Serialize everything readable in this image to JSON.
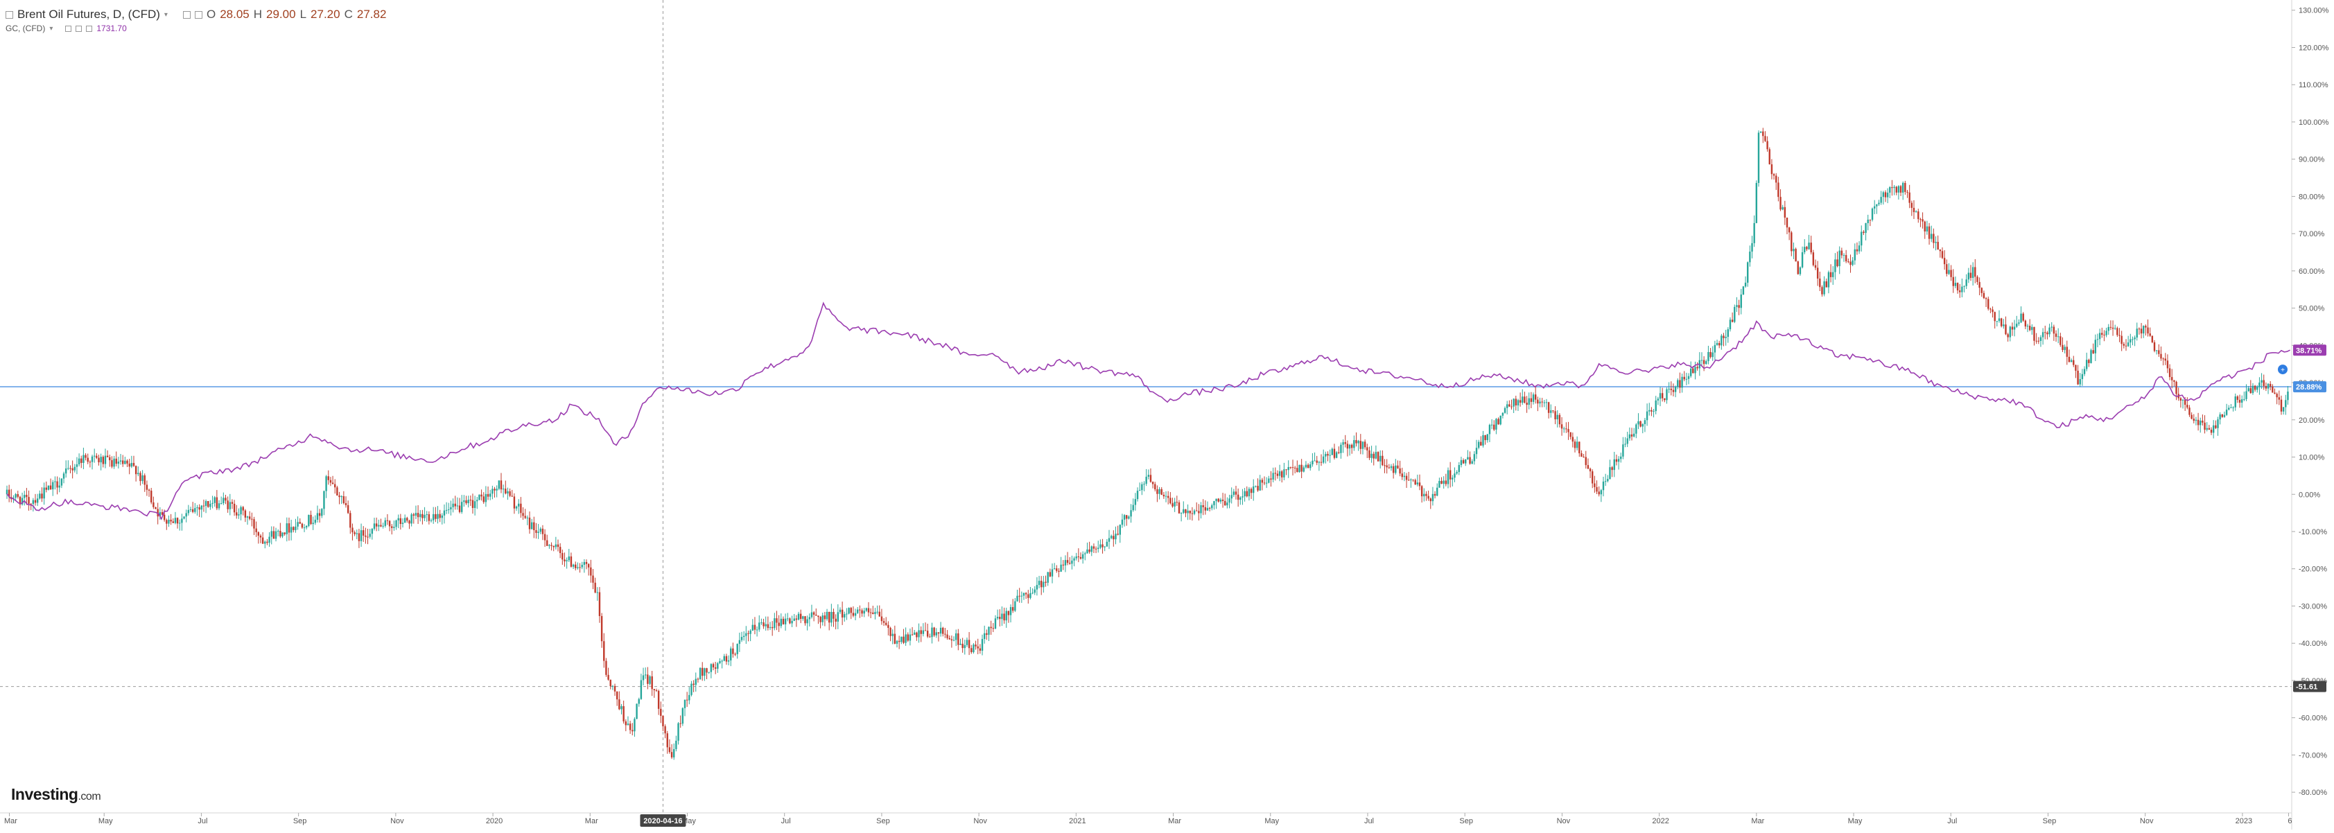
{
  "legend": {
    "main_title": "Brent Oil Futures, D, (CFD)",
    "open": "28.05",
    "high": "29.00",
    "low": "27.20",
    "close": "27.82",
    "compare_title": "GC, (CFD)",
    "compare_value": "1731.70",
    "o_label": "O",
    "h_label": "H",
    "l_label": "L",
    "c_label": "C"
  },
  "brand": {
    "name": "Investing",
    "suffix": ".com"
  },
  "colors": {
    "up": "#26a69a",
    "down": "#c0392b",
    "gold_line": "#9b3db0",
    "hline": "#4a90e2",
    "grid_cross": "#999999"
  },
  "chart_data": {
    "type": "line",
    "title": "Brent Oil Futures, D, (CFD)",
    "y_unit": "% change",
    "ylim": [
      -85,
      132
    ],
    "y_ticks": [
      "130.00%",
      "120.00%",
      "110.00%",
      "100.00%",
      "90.00%",
      "80.00%",
      "70.00%",
      "60.00%",
      "50.00%",
      "40.00%",
      "30.00%",
      "20.00%",
      "10.00%",
      "0.00%",
      "-10.00%",
      "-20.00%",
      "-30.00%",
      "-40.00%",
      "-50.00%",
      "-60.00%",
      "-70.00%",
      "-80.00%"
    ],
    "y_tick_values": [
      130,
      120,
      110,
      100,
      90,
      80,
      70,
      60,
      50,
      40,
      30,
      20,
      10,
      0,
      -10,
      -20,
      -30,
      -40,
      -50,
      -60,
      -70,
      -80
    ],
    "x_range": [
      0,
      47
    ],
    "x_ticks": [
      {
        "label": "Mar",
        "m": 0.05
      },
      {
        "label": "May",
        "m": 2.0
      },
      {
        "label": "Jul",
        "m": 4.0
      },
      {
        "label": "Sep",
        "m": 6.0
      },
      {
        "label": "Nov",
        "m": 8.0
      },
      {
        "label": "2020",
        "m": 10.0
      },
      {
        "label": "Mar",
        "m": 12.0
      },
      {
        "label": "May",
        "m": 14.0
      },
      {
        "label": "Jul",
        "m": 16.0
      },
      {
        "label": "Sep",
        "m": 18.0
      },
      {
        "label": "Nov",
        "m": 20.0
      },
      {
        "label": "2021",
        "m": 22.0
      },
      {
        "label": "Mar",
        "m": 24.0
      },
      {
        "label": "May",
        "m": 26.0
      },
      {
        "label": "Jul",
        "m": 28.0
      },
      {
        "label": "Sep",
        "m": 30.0
      },
      {
        "label": "Nov",
        "m": 32.0
      },
      {
        "label": "2022",
        "m": 34.0
      },
      {
        "label": "Mar",
        "m": 36.0
      },
      {
        "label": "May",
        "m": 38.0
      },
      {
        "label": "Jul",
        "m": 40.0
      },
      {
        "label": "Sep",
        "m": 42.0
      },
      {
        "label": "Nov",
        "m": 44.0
      },
      {
        "label": "2023",
        "m": 46.0
      },
      {
        "label": "6",
        "m": 46.95
      }
    ],
    "crosshair": {
      "date_label": "2020-04-16",
      "m": 13.5,
      "value_label": "-51.61",
      "value": -51.61
    },
    "hline": {
      "value_label": "28.88%",
      "value": 28.88
    },
    "series": [
      {
        "name": "Brent Oil Futures, D, (CFD)",
        "kind": "candlestick",
        "points": [
          [
            0,
            0
          ],
          [
            0.5,
            -2
          ],
          [
            1,
            2
          ],
          [
            1.6,
            10
          ],
          [
            2,
            9
          ],
          [
            2.7,
            7
          ],
          [
            3.2,
            -6
          ],
          [
            3.6,
            -7
          ],
          [
            4,
            -3
          ],
          [
            4.5,
            -2
          ],
          [
            5,
            -6
          ],
          [
            5.3,
            -12
          ],
          [
            6,
            -8
          ],
          [
            6.5,
            -6
          ],
          [
            6.6,
            4
          ],
          [
            7,
            -2
          ],
          [
            7.2,
            -12
          ],
          [
            7.6,
            -9
          ],
          [
            8,
            -8
          ],
          [
            8.6,
            -6
          ],
          [
            9,
            -5
          ],
          [
            9.5,
            -3
          ],
          [
            10,
            0
          ],
          [
            10.2,
            3
          ],
          [
            10.4,
            -1
          ],
          [
            10.8,
            -8
          ],
          [
            11.2,
            -13
          ],
          [
            11.6,
            -18
          ],
          [
            12,
            -20
          ],
          [
            12.2,
            -28
          ],
          [
            12.35,
            -47
          ],
          [
            12.6,
            -55
          ],
          [
            12.9,
            -65
          ],
          [
            13.1,
            -50
          ],
          [
            13.3,
            -50
          ],
          [
            13.5,
            -58
          ],
          [
            13.7,
            -72
          ],
          [
            14,
            -55
          ],
          [
            14.3,
            -48
          ],
          [
            14.7,
            -46
          ],
          [
            15,
            -42
          ],
          [
            15.5,
            -35
          ],
          [
            16,
            -34
          ],
          [
            16.5,
            -33
          ],
          [
            17,
            -33
          ],
          [
            17.5,
            -31
          ],
          [
            18,
            -33
          ],
          [
            18.3,
            -39
          ],
          [
            18.8,
            -38
          ],
          [
            19.2,
            -37
          ],
          [
            19.6,
            -39
          ],
          [
            20,
            -42
          ],
          [
            20.3,
            -36
          ],
          [
            20.8,
            -29
          ],
          [
            21.3,
            -24
          ],
          [
            21.8,
            -18
          ],
          [
            22.2,
            -16
          ],
          [
            22.5,
            -15
          ],
          [
            23,
            -8
          ],
          [
            23.5,
            5
          ],
          [
            24,
            -3
          ],
          [
            24.5,
            -5
          ],
          [
            25,
            -2
          ],
          [
            25.6,
            1
          ],
          [
            26.2,
            5
          ],
          [
            26.8,
            8
          ],
          [
            27.3,
            11
          ],
          [
            27.8,
            14
          ],
          [
            28.3,
            9
          ],
          [
            28.8,
            5
          ],
          [
            29.3,
            -1
          ],
          [
            29.7,
            5
          ],
          [
            30.2,
            10
          ],
          [
            30.6,
            18
          ],
          [
            31,
            24
          ],
          [
            31.5,
            26
          ],
          [
            32,
            20
          ],
          [
            32.5,
            10
          ],
          [
            32.8,
            0
          ],
          [
            33.2,
            10
          ],
          [
            33.6,
            18
          ],
          [
            34,
            25
          ],
          [
            34.5,
            30
          ],
          [
            35,
            36
          ],
          [
            35.4,
            43
          ],
          [
            35.8,
            55
          ],
          [
            36,
            73
          ],
          [
            36.1,
            100
          ],
          [
            36.3,
            90
          ],
          [
            36.6,
            75
          ],
          [
            36.9,
            60
          ],
          [
            37.1,
            68
          ],
          [
            37.4,
            55
          ],
          [
            37.8,
            65
          ],
          [
            38,
            62
          ],
          [
            38.2,
            70
          ],
          [
            38.5,
            78
          ],
          [
            38.8,
            83
          ],
          [
            39.1,
            82
          ],
          [
            39.3,
            75
          ],
          [
            39.6,
            70
          ],
          [
            39.9,
            62
          ],
          [
            40.2,
            55
          ],
          [
            40.5,
            60
          ],
          [
            40.8,
            50
          ],
          [
            41.2,
            43
          ],
          [
            41.5,
            48
          ],
          [
            41.8,
            42
          ],
          [
            42.1,
            45
          ],
          [
            42.4,
            38
          ],
          [
            42.7,
            30
          ],
          [
            43,
            40
          ],
          [
            43.3,
            45
          ],
          [
            43.7,
            40
          ],
          [
            44,
            45
          ],
          [
            44.2,
            40
          ],
          [
            44.5,
            34
          ],
          [
            44.8,
            25
          ],
          [
            45.1,
            20
          ],
          [
            45.4,
            17
          ],
          [
            45.6,
            22
          ],
          [
            45.9,
            25
          ],
          [
            46.2,
            28
          ],
          [
            46.5,
            30
          ],
          [
            46.7,
            28
          ],
          [
            46.9,
            22
          ],
          [
            47,
            28
          ]
        ]
      },
      {
        "name": "GC, (CFD)",
        "kind": "line",
        "points": [
          [
            0,
            0
          ],
          [
            0.6,
            -4
          ],
          [
            1.2,
            -2
          ],
          [
            1.8,
            -3
          ],
          [
            2.5,
            -4
          ],
          [
            3.2,
            -6
          ],
          [
            3.6,
            3
          ],
          [
            4.2,
            6
          ],
          [
            4.8,
            7
          ],
          [
            5.3,
            10
          ],
          [
            6,
            14
          ],
          [
            6.3,
            16
          ],
          [
            7,
            12
          ],
          [
            7.5,
            12
          ],
          [
            8.2,
            10
          ],
          [
            8.8,
            9
          ],
          [
            9.3,
            12
          ],
          [
            9.8,
            14
          ],
          [
            10.3,
            17
          ],
          [
            10.8,
            19
          ],
          [
            11.3,
            20
          ],
          [
            11.6,
            24
          ],
          [
            12.2,
            20
          ],
          [
            12.5,
            13
          ],
          [
            12.8,
            16
          ],
          [
            13.1,
            25
          ],
          [
            13.5,
            29
          ],
          [
            14,
            28
          ],
          [
            14.5,
            27
          ],
          [
            15,
            28
          ],
          [
            15.3,
            32
          ],
          [
            16,
            36
          ],
          [
            16.5,
            39
          ],
          [
            16.8,
            51
          ],
          [
            17.2,
            45
          ],
          [
            17.7,
            44
          ],
          [
            18.5,
            43
          ],
          [
            19,
            41
          ],
          [
            19.3,
            40
          ],
          [
            19.8,
            37
          ],
          [
            20.3,
            38
          ],
          [
            20.8,
            33
          ],
          [
            21.3,
            34
          ],
          [
            21.8,
            36
          ],
          [
            22.2,
            34
          ],
          [
            22.6,
            33
          ],
          [
            23.2,
            32
          ],
          [
            23.8,
            25
          ],
          [
            24.3,
            27
          ],
          [
            24.8,
            28
          ],
          [
            25.3,
            29
          ],
          [
            25.8,
            32
          ],
          [
            26.4,
            34
          ],
          [
            27,
            37
          ],
          [
            27.5,
            35
          ],
          [
            28,
            33
          ],
          [
            28.5,
            32
          ],
          [
            29,
            31
          ],
          [
            29.5,
            29
          ],
          [
            30,
            30
          ],
          [
            30.5,
            32
          ],
          [
            31,
            31
          ],
          [
            31.5,
            29
          ],
          [
            32,
            30
          ],
          [
            32.4,
            29
          ],
          [
            32.8,
            35
          ],
          [
            33.3,
            33
          ],
          [
            33.8,
            33
          ],
          [
            34.3,
            35
          ],
          [
            35,
            34
          ],
          [
            35.6,
            40
          ],
          [
            36,
            46
          ],
          [
            36.3,
            42
          ],
          [
            36.8,
            43
          ],
          [
            37.2,
            40
          ],
          [
            37.7,
            37
          ],
          [
            38.2,
            37
          ],
          [
            38.6,
            35
          ],
          [
            39.2,
            33
          ],
          [
            39.6,
            30
          ],
          [
            40,
            28
          ],
          [
            40.6,
            26
          ],
          [
            41.3,
            25
          ],
          [
            41.6,
            23
          ],
          [
            41.9,
            20
          ],
          [
            42.2,
            18
          ],
          [
            42.8,
            21
          ],
          [
            43.2,
            20
          ],
          [
            43.6,
            23
          ],
          [
            44,
            26
          ],
          [
            44.3,
            32
          ],
          [
            44.6,
            27
          ],
          [
            45,
            25
          ],
          [
            45.4,
            30
          ],
          [
            45.8,
            32
          ],
          [
            46.2,
            34
          ],
          [
            46.6,
            38
          ],
          [
            47,
            38.71
          ]
        ],
        "last_label": "38.71%"
      }
    ]
  }
}
